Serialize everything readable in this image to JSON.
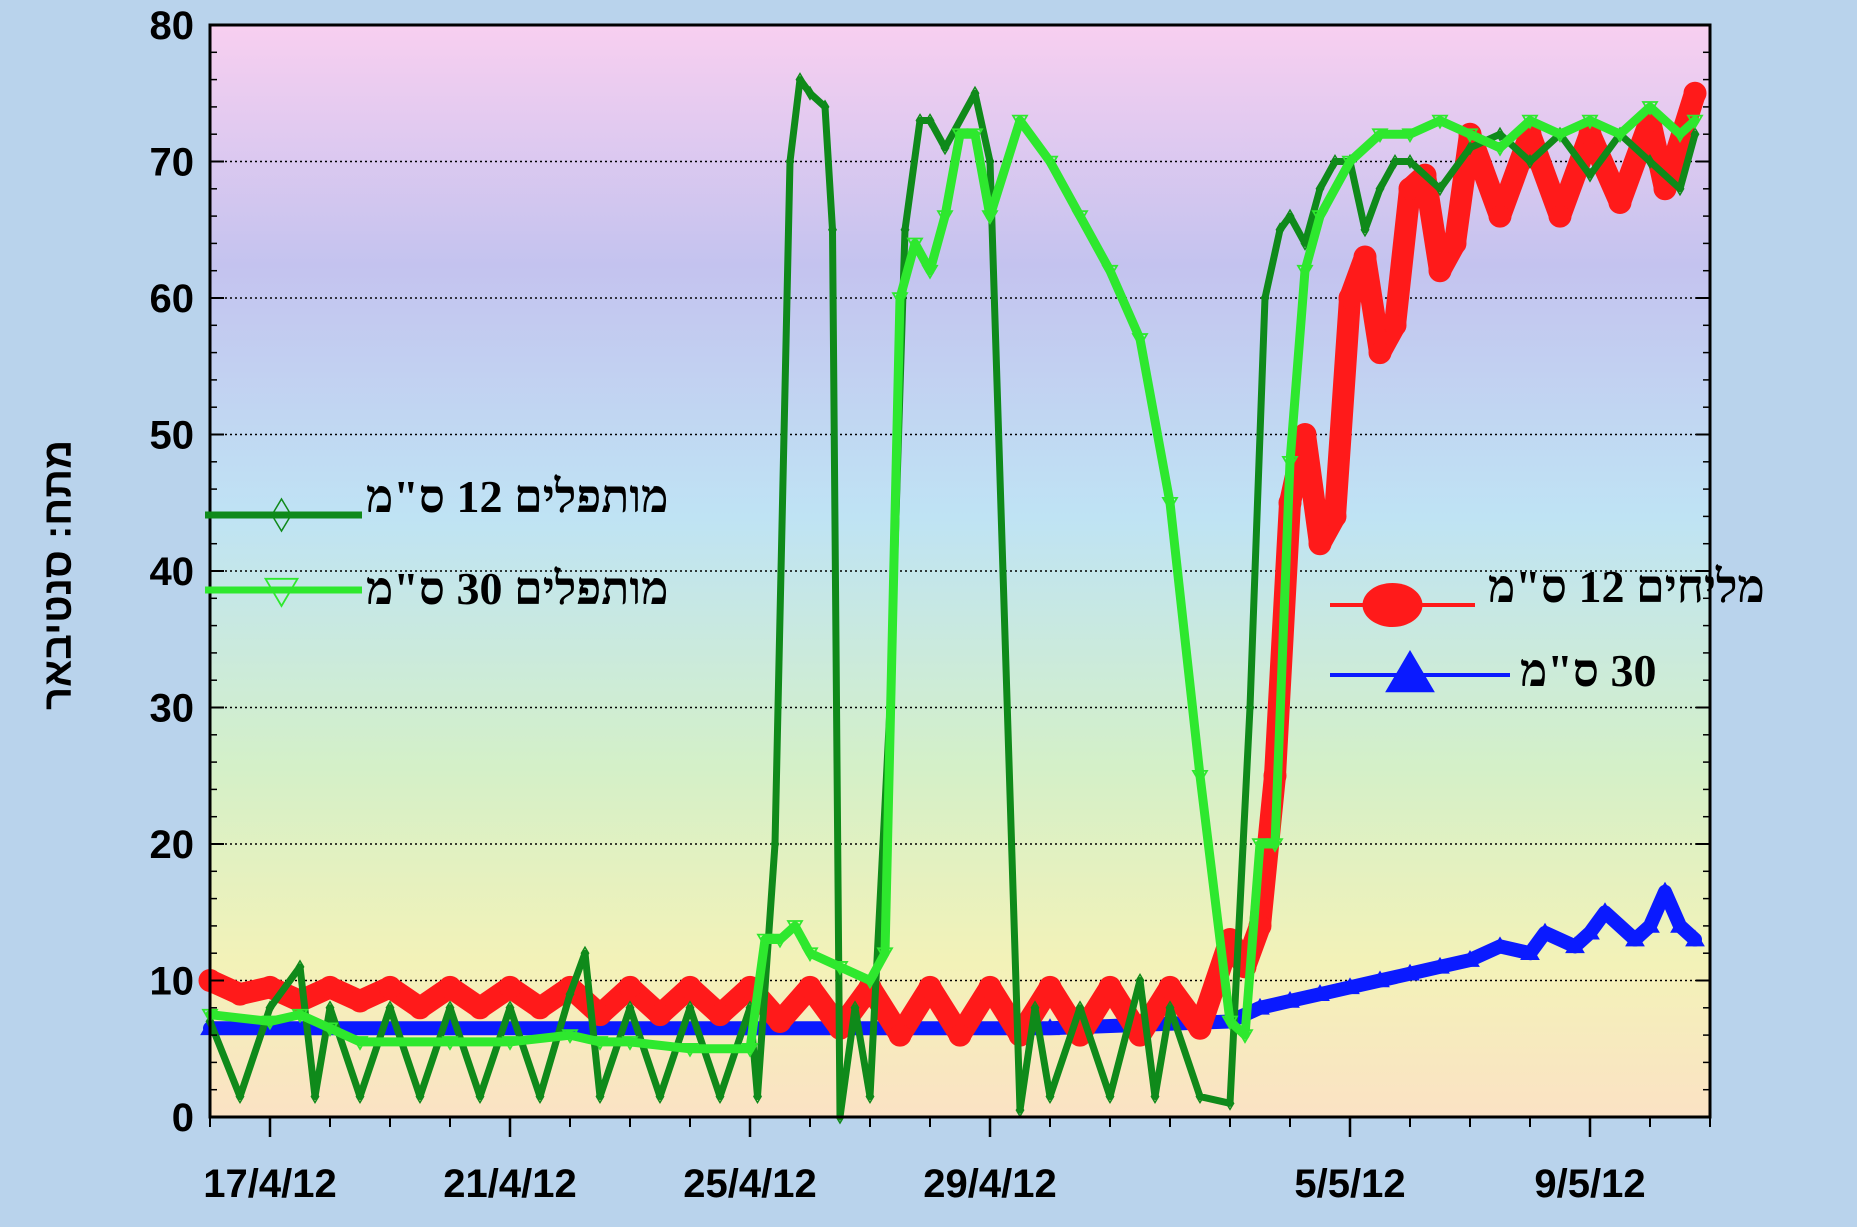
{
  "chart_data": {
    "type": "line",
    "title": "",
    "xlabel": "",
    "ylabel": "מתח: סנטיבאר",
    "ylim": [
      0,
      80
    ],
    "yticks": [
      0,
      10,
      20,
      30,
      40,
      50,
      60,
      70,
      80
    ],
    "xlim": [
      "2012-04-16",
      "2012-05-11"
    ],
    "xtick_labels": [
      {
        "date": "2012-04-17",
        "label": "17/4/12"
      },
      {
        "date": "2012-04-21",
        "label": "21/4/12"
      },
      {
        "date": "2012-04-25",
        "label": "25/4/12"
      },
      {
        "date": "2012-04-29",
        "label": "29/4/12"
      },
      {
        "date": "2012-05-05",
        "label": "5/5/12"
      },
      {
        "date": "2012-05-09",
        "label": "9/5/12"
      }
    ],
    "grid": "horizontal dotted",
    "background": "vertical gradient pink to peach",
    "series": [
      {
        "name": "מותפלים 12 ס\"מ",
        "color": "#0f8a1a",
        "marker": "diamond",
        "points": [
          [
            "2012-04-16",
            7
          ],
          [
            "2012-04-16T12:00",
            1.5
          ],
          [
            "2012-04-17",
            8
          ],
          [
            "2012-04-17T12:00",
            11
          ],
          [
            "2012-04-17T18:00",
            1.5
          ],
          [
            "2012-04-18",
            8
          ],
          [
            "2012-04-18T12:00",
            1.5
          ],
          [
            "2012-04-19",
            8
          ],
          [
            "2012-04-19T12:00",
            1.5
          ],
          [
            "2012-04-20",
            8
          ],
          [
            "2012-04-20T12:00",
            1.5
          ],
          [
            "2012-04-21",
            8
          ],
          [
            "2012-04-21T12:00",
            1.5
          ],
          [
            "2012-04-22",
            9
          ],
          [
            "2012-04-22T06:00",
            12
          ],
          [
            "2012-04-22T12:00",
            1.5
          ],
          [
            "2012-04-23",
            8
          ],
          [
            "2012-04-23T12:00",
            1.5
          ],
          [
            "2012-04-24",
            8
          ],
          [
            "2012-04-24T12:00",
            1.5
          ],
          [
            "2012-04-25",
            8
          ],
          [
            "2012-04-25T03:00",
            1.5
          ],
          [
            "2012-04-25T10:00",
            20
          ],
          [
            "2012-04-25T16:00",
            70
          ],
          [
            "2012-04-25T20:00",
            76
          ],
          [
            "2012-04-26",
            75
          ],
          [
            "2012-04-26T06:00",
            74
          ],
          [
            "2012-04-26T09:00",
            65
          ],
          [
            "2012-04-26T12:00",
            0
          ],
          [
            "2012-04-26T18:00",
            8
          ],
          [
            "2012-04-27",
            1.5
          ],
          [
            "2012-04-27T08:00",
            30
          ],
          [
            "2012-04-27T14:00",
            65
          ],
          [
            "2012-04-27T20:00",
            73
          ],
          [
            "2012-04-28",
            73
          ],
          [
            "2012-04-28T06:00",
            71
          ],
          [
            "2012-04-28T18:00",
            75
          ],
          [
            "2012-04-29",
            70
          ],
          [
            "2012-04-29T12:00",
            0.5
          ],
          [
            "2012-04-29T18:00",
            8
          ],
          [
            "2012-04-30",
            1.5
          ],
          [
            "2012-04-30T12:00",
            8
          ],
          [
            "2012-05-01",
            1.5
          ],
          [
            "2012-05-01T12:00",
            10
          ],
          [
            "2012-05-01T18:00",
            1.5
          ],
          [
            "2012-05-02",
            8
          ],
          [
            "2012-05-02T12:00",
            1.5
          ],
          [
            "2012-05-03",
            1
          ],
          [
            "2012-05-03T08:00",
            30
          ],
          [
            "2012-05-03T14:00",
            60
          ],
          [
            "2012-05-03T20:00",
            65
          ],
          [
            "2012-05-04",
            66
          ],
          [
            "2012-05-04T06:00",
            64
          ],
          [
            "2012-05-04T12:00",
            68
          ],
          [
            "2012-05-04T18:00",
            70
          ],
          [
            "2012-05-05",
            70
          ],
          [
            "2012-05-05T06:00",
            65
          ],
          [
            "2012-05-05T12:00",
            68
          ],
          [
            "2012-05-05T18:00",
            70
          ],
          [
            "2012-05-06",
            70
          ],
          [
            "2012-05-06T12:00",
            68
          ],
          [
            "2012-05-07",
            71
          ],
          [
            "2012-05-07T12:00",
            72
          ],
          [
            "2012-05-08",
            70
          ],
          [
            "2012-05-08T12:00",
            72
          ],
          [
            "2012-05-09",
            69
          ],
          [
            "2012-05-09T12:00",
            72
          ],
          [
            "2012-05-10",
            70
          ],
          [
            "2012-05-10T12:00",
            68
          ],
          [
            "2012-05-10T18:00",
            72
          ]
        ]
      },
      {
        "name": "מותפלים 30 ס\"מ",
        "color": "#2ee82e",
        "marker": "triangle-down",
        "points": [
          [
            "2012-04-16",
            7.5
          ],
          [
            "2012-04-17",
            7
          ],
          [
            "2012-04-17T12:00",
            7.5
          ],
          [
            "2012-04-18",
            6.5
          ],
          [
            "2012-04-18T12:00",
            5.5
          ],
          [
            "2012-04-20",
            5.5
          ],
          [
            "2012-04-21",
            5.5
          ],
          [
            "2012-04-22",
            6
          ],
          [
            "2012-04-22T12:00",
            5.5
          ],
          [
            "2012-04-23",
            5.5
          ],
          [
            "2012-04-24",
            5
          ],
          [
            "2012-04-25",
            5
          ],
          [
            "2012-04-25T06:00",
            13
          ],
          [
            "2012-04-25T12:00",
            13
          ],
          [
            "2012-04-25T18:00",
            14
          ],
          [
            "2012-04-26",
            12
          ],
          [
            "2012-04-26T12:00",
            11
          ],
          [
            "2012-04-27",
            10
          ],
          [
            "2012-04-27T06:00",
            12
          ],
          [
            "2012-04-27T12:00",
            60
          ],
          [
            "2012-04-27T18:00",
            64
          ],
          [
            "2012-04-28",
            62
          ],
          [
            "2012-04-28T06:00",
            66
          ],
          [
            "2012-04-28T12:00",
            72
          ],
          [
            "2012-04-28T18:00",
            72
          ],
          [
            "2012-04-29",
            66
          ],
          [
            "2012-04-29T12:00",
            73
          ],
          [
            "2012-04-30",
            70
          ],
          [
            "2012-04-30T12:00",
            66
          ],
          [
            "2012-05-01",
            62
          ],
          [
            "2012-05-01T12:00",
            57
          ],
          [
            "2012-05-02",
            45
          ],
          [
            "2012-05-02T12:00",
            25
          ],
          [
            "2012-05-03",
            7
          ],
          [
            "2012-05-03T06:00",
            6
          ],
          [
            "2012-05-03T12:00",
            20
          ],
          [
            "2012-05-03T18:00",
            20
          ],
          [
            "2012-05-04",
            48
          ],
          [
            "2012-05-04T06:00",
            62
          ],
          [
            "2012-05-04T12:00",
            66
          ],
          [
            "2012-05-05",
            70
          ],
          [
            "2012-05-05T12:00",
            72
          ],
          [
            "2012-05-06",
            72
          ],
          [
            "2012-05-06T12:00",
            73
          ],
          [
            "2012-05-07",
            72
          ],
          [
            "2012-05-07T12:00",
            71
          ],
          [
            "2012-05-08",
            73
          ],
          [
            "2012-05-08T12:00",
            72
          ],
          [
            "2012-05-09",
            73
          ],
          [
            "2012-05-09T12:00",
            72
          ],
          [
            "2012-05-10",
            74
          ],
          [
            "2012-05-10T12:00",
            72
          ],
          [
            "2012-05-10T18:00",
            73
          ]
        ]
      },
      {
        "name": "מליחים 12 ס\"מ",
        "color": "#ff1a1a",
        "marker": "circle",
        "points": [
          [
            "2012-04-16",
            10
          ],
          [
            "2012-04-16T12:00",
            9
          ],
          [
            "2012-04-17",
            9.5
          ],
          [
            "2012-04-17T12:00",
            8.5
          ],
          [
            "2012-04-18",
            9.5
          ],
          [
            "2012-04-18T12:00",
            8.5
          ],
          [
            "2012-04-19",
            9.5
          ],
          [
            "2012-04-19T12:00",
            8
          ],
          [
            "2012-04-20",
            9.5
          ],
          [
            "2012-04-20T12:00",
            8
          ],
          [
            "2012-04-21",
            9.5
          ],
          [
            "2012-04-21T12:00",
            8
          ],
          [
            "2012-04-22",
            9.5
          ],
          [
            "2012-04-22T12:00",
            7.5
          ],
          [
            "2012-04-23",
            9.5
          ],
          [
            "2012-04-23T12:00",
            7.5
          ],
          [
            "2012-04-24",
            9.5
          ],
          [
            "2012-04-24T12:00",
            7.5
          ],
          [
            "2012-04-25",
            9.5
          ],
          [
            "2012-04-25T12:00",
            7
          ],
          [
            "2012-04-26",
            9.5
          ],
          [
            "2012-04-26T12:00",
            6.5
          ],
          [
            "2012-04-27",
            9.5
          ],
          [
            "2012-04-27T12:00",
            6
          ],
          [
            "2012-04-28",
            9.5
          ],
          [
            "2012-04-28T12:00",
            6
          ],
          [
            "2012-04-29",
            9.5
          ],
          [
            "2012-04-29T12:00",
            6
          ],
          [
            "2012-04-30",
            9.5
          ],
          [
            "2012-04-30T12:00",
            6
          ],
          [
            "2012-05-01",
            9.5
          ],
          [
            "2012-05-01T12:00",
            6
          ],
          [
            "2012-05-02",
            9.5
          ],
          [
            "2012-05-02T12:00",
            6.5
          ],
          [
            "2012-05-03",
            13
          ],
          [
            "2012-05-03T06:00",
            11
          ],
          [
            "2012-05-03T12:00",
            14
          ],
          [
            "2012-05-03T18:00",
            25
          ],
          [
            "2012-05-04",
            45
          ],
          [
            "2012-05-04T06:00",
            50
          ],
          [
            "2012-05-04T12:00",
            42
          ],
          [
            "2012-05-04T18:00",
            44
          ],
          [
            "2012-05-05",
            60
          ],
          [
            "2012-05-05T06:00",
            63
          ],
          [
            "2012-05-05T12:00",
            56
          ],
          [
            "2012-05-05T18:00",
            58
          ],
          [
            "2012-05-06",
            68
          ],
          [
            "2012-05-06T06:00",
            69
          ],
          [
            "2012-05-06T12:00",
            62
          ],
          [
            "2012-05-06T18:00",
            64
          ],
          [
            "2012-05-07",
            72
          ],
          [
            "2012-05-07T12:00",
            66
          ],
          [
            "2012-05-08",
            72
          ],
          [
            "2012-05-08T12:00",
            66
          ],
          [
            "2012-05-09",
            72
          ],
          [
            "2012-05-09T12:00",
            67
          ],
          [
            "2012-05-10",
            73
          ],
          [
            "2012-05-10T06:00",
            68
          ],
          [
            "2012-05-10T18:00",
            75
          ]
        ]
      },
      {
        "name": "30 ס\"מ",
        "color": "#0a1aff",
        "marker": "triangle-up",
        "points": [
          [
            "2012-04-16",
            6.5
          ],
          [
            "2012-04-20",
            6.5
          ],
          [
            "2012-04-25",
            6.5
          ],
          [
            "2012-04-30",
            6.5
          ],
          [
            "2012-05-03",
            7
          ],
          [
            "2012-05-03T12:00",
            8
          ],
          [
            "2012-05-04",
            8.5
          ],
          [
            "2012-05-04T12:00",
            9
          ],
          [
            "2012-05-05",
            9.5
          ],
          [
            "2012-05-05T12:00",
            10
          ],
          [
            "2012-05-06",
            10.5
          ],
          [
            "2012-05-06T12:00",
            11
          ],
          [
            "2012-05-07",
            11.5
          ],
          [
            "2012-05-07T12:00",
            12.5
          ],
          [
            "2012-05-08",
            12
          ],
          [
            "2012-05-08T06:00",
            13.5
          ],
          [
            "2012-05-08T18:00",
            12.5
          ],
          [
            "2012-05-09",
            13.5
          ],
          [
            "2012-05-09T06:00",
            15
          ],
          [
            "2012-05-09T18:00",
            13
          ],
          [
            "2012-05-10",
            14
          ],
          [
            "2012-05-10T06:00",
            16.5
          ],
          [
            "2012-05-10T12:00",
            14
          ],
          [
            "2012-05-10T18:00",
            13
          ]
        ]
      }
    ],
    "legend": [
      {
        "series": 0,
        "placement": "left-middle"
      },
      {
        "series": 1,
        "placement": "left-middle"
      },
      {
        "series": 2,
        "placement": "right-middle"
      },
      {
        "series": 3,
        "placement": "right-middle"
      }
    ]
  }
}
